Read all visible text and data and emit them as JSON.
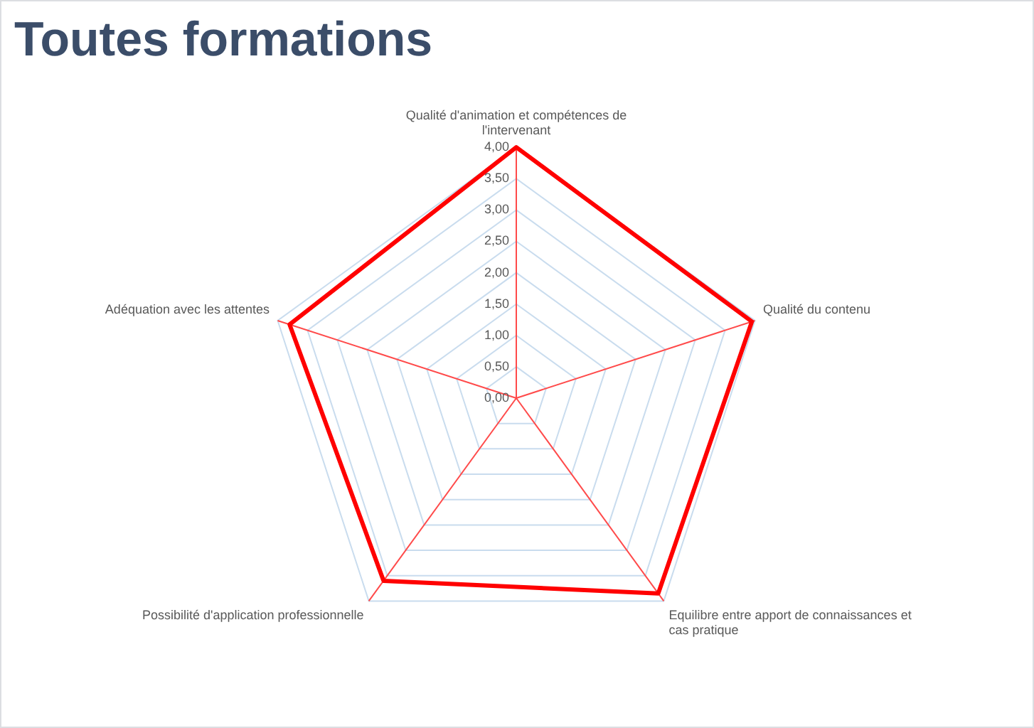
{
  "chart_data": {
    "type": "radar",
    "title": "Toutes formations",
    "categories": [
      "Qualité d'animation et compétences de l'intervenant",
      "Qualité du contenu",
      "Equilibre entre apport de connaissances et cas pratique",
      "Possibilité d'application professionnelle",
      "Adéquation avec les attentes"
    ],
    "series": [
      {
        "color": "#ff0000",
        "values": [
          4.0,
          3.95,
          3.85,
          3.6,
          3.8
        ]
      }
    ],
    "ylim": [
      0,
      4
    ],
    "yticks": [
      {
        "value": 0,
        "label": "0,00"
      },
      {
        "value": 0.5,
        "label": "0,50"
      },
      {
        "value": 1,
        "label": "1,00"
      },
      {
        "value": 1.5,
        "label": "1,50"
      },
      {
        "value": 2,
        "label": "2,00"
      },
      {
        "value": 2.5,
        "label": "2,50"
      },
      {
        "value": 3,
        "label": "3,00"
      },
      {
        "value": 3.5,
        "label": "3,50"
      },
      {
        "value": 4,
        "label": "4,00"
      }
    ],
    "grid": true,
    "legend": false,
    "marker": "none"
  }
}
